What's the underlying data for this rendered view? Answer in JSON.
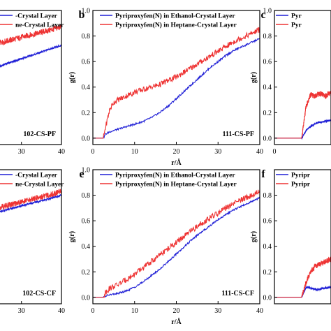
{
  "chart_data": [
    {
      "type": "line",
      "panel": "a",
      "letter": "",
      "corner_label": "102-CS-PF",
      "xlim": [
        18,
        40
      ],
      "ylim": [
        0,
        1.0
      ],
      "xticks": [
        30,
        40
      ],
      "yticks": [],
      "xlabel": "",
      "ylabel": "",
      "legend": [
        "-Crystal Layer",
        "ne-Crystal Layer"
      ],
      "series": [
        {
          "name": "-Crystal Layer",
          "color": "#1f1fd6",
          "x": [
            18,
            22,
            26,
            30,
            34,
            38,
            40
          ],
          "y": [
            0.5,
            0.55,
            0.6,
            0.64,
            0.68,
            0.72,
            0.74
          ]
        },
        {
          "name": "ne-Crystal Layer",
          "color": "#ee3333",
          "x": [
            18,
            22,
            26,
            30,
            34,
            38,
            40
          ],
          "y": [
            0.7,
            0.74,
            0.77,
            0.8,
            0.83,
            0.86,
            0.88
          ]
        }
      ]
    },
    {
      "type": "line",
      "panel": "b",
      "letter": "b",
      "corner_label": "111-CS-PF",
      "xlim": [
        0,
        40
      ],
      "ylim": [
        -0.05,
        1.0
      ],
      "xticks": [
        0,
        10,
        20,
        30,
        40
      ],
      "yticks": [
        0.0,
        0.2,
        0.4,
        0.6,
        0.8,
        1.0
      ],
      "xlabel": "r/Å",
      "ylabel": "g(r)",
      "legend": [
        "Pyriproxyfen(N) in Ethanol-Crystal Layer",
        "Pyriproxyfen(N) in Heptane-Crystal Layer"
      ],
      "series": [
        {
          "name": "Pyriproxyfen(N) in Ethanol-Crystal Layer",
          "color": "#1f1fd6",
          "x": [
            0,
            2.5,
            3,
            4,
            6,
            8,
            10,
            12,
            14,
            16,
            18,
            20,
            22,
            24,
            26,
            28,
            30,
            32,
            34,
            36,
            38,
            40
          ],
          "y": [
            0,
            0,
            0.03,
            0.05,
            0.07,
            0.09,
            0.11,
            0.13,
            0.16,
            0.2,
            0.25,
            0.31,
            0.37,
            0.43,
            0.49,
            0.55,
            0.6,
            0.65,
            0.69,
            0.72,
            0.75,
            0.78
          ]
        },
        {
          "name": "Pyriproxyfen(N) in Heptane-Crystal Layer",
          "color": "#ee3333",
          "x": [
            0,
            2.5,
            3,
            4,
            5,
            6,
            8,
            10,
            12,
            14,
            16,
            18,
            20,
            22,
            24,
            26,
            28,
            30,
            32,
            34,
            36,
            38,
            40
          ],
          "y": [
            0,
            0,
            0.08,
            0.22,
            0.28,
            0.3,
            0.33,
            0.36,
            0.38,
            0.4,
            0.42,
            0.45,
            0.48,
            0.52,
            0.56,
            0.6,
            0.64,
            0.68,
            0.72,
            0.76,
            0.79,
            0.82,
            0.85
          ]
        }
      ]
    },
    {
      "type": "line",
      "panel": "c",
      "letter": "c",
      "corner_label": "",
      "xlim": [
        0,
        5
      ],
      "ylim": [
        -0.05,
        1.0
      ],
      "xticks": [
        0
      ],
      "yticks": [
        0.0,
        0.2,
        0.4,
        0.6,
        0.8,
        1.0
      ],
      "xlabel": "",
      "ylabel": "g(r)",
      "legend": [
        "Pyr",
        "Pyr"
      ],
      "series": [
        {
          "name": "Pyr",
          "color": "#1f1fd6",
          "x": [
            0,
            2.4,
            2.8,
            3.3,
            3.8,
            4.3,
            5
          ],
          "y": [
            0,
            0,
            0.06,
            0.1,
            0.12,
            0.13,
            0.14
          ]
        },
        {
          "name": "Pyr",
          "color": "#ee3333",
          "x": [
            0,
            2.4,
            2.8,
            3.2,
            3.6,
            4.0,
            4.5,
            5
          ],
          "y": [
            0,
            0,
            0.25,
            0.34,
            0.33,
            0.35,
            0.33,
            0.36
          ]
        }
      ]
    },
    {
      "type": "line",
      "panel": "d",
      "letter": "",
      "corner_label": "102-CS-CF",
      "xlim": [
        18,
        40
      ],
      "ylim": [
        0,
        1.0
      ],
      "xticks": [
        30,
        40
      ],
      "yticks": [],
      "xlabel": "",
      "ylabel": "",
      "legend": [
        "-Crystal Layer",
        "ne-Crystal Layer"
      ],
      "series": [
        {
          "name": "-Crystal Layer",
          "color": "#1f1fd6",
          "x": [
            18,
            22,
            26,
            30,
            34,
            38,
            40
          ],
          "y": [
            0.62,
            0.66,
            0.7,
            0.73,
            0.76,
            0.79,
            0.81
          ]
        },
        {
          "name": "ne-Crystal Layer",
          "color": "#ee3333",
          "x": [
            18,
            22,
            26,
            30,
            34,
            38,
            40
          ],
          "y": [
            0.66,
            0.7,
            0.73,
            0.76,
            0.79,
            0.82,
            0.84
          ]
        }
      ]
    },
    {
      "type": "line",
      "panel": "e",
      "letter": "e",
      "corner_label": "111-CS-CF",
      "xlim": [
        0,
        40
      ],
      "ylim": [
        -0.05,
        1.0
      ],
      "xticks": [
        0,
        10,
        20,
        30,
        40
      ],
      "yticks": [
        0.0,
        0.2,
        0.4,
        0.6,
        0.8,
        1.0
      ],
      "xlabel": "r/Å",
      "ylabel": "g(r)",
      "legend": [
        "Pyriproxyfen(N) in Ethanol-Crystal Layer",
        "Pyriproxyfen(N) in Heptane-Crystal Layer"
      ],
      "series": [
        {
          "name": "Pyriproxyfen(N) in Ethanol-Crystal Layer",
          "color": "#1f1fd6",
          "x": [
            0,
            2.5,
            3,
            4,
            6,
            8,
            10,
            12,
            14,
            16,
            18,
            20,
            22,
            24,
            26,
            28,
            30,
            32,
            34,
            36,
            38,
            40
          ],
          "y": [
            0,
            0,
            0.01,
            0.02,
            0.03,
            0.05,
            0.08,
            0.12,
            0.17,
            0.22,
            0.28,
            0.34,
            0.4,
            0.46,
            0.51,
            0.56,
            0.61,
            0.65,
            0.69,
            0.72,
            0.75,
            0.78
          ]
        },
        {
          "name": "Pyriproxyfen(N) in Heptane-Crystal Layer",
          "color": "#ee3333",
          "x": [
            0,
            2.5,
            3,
            4,
            6,
            8,
            10,
            12,
            14,
            16,
            18,
            20,
            22,
            24,
            26,
            28,
            30,
            32,
            34,
            36,
            38,
            40
          ],
          "y": [
            0,
            0,
            0.04,
            0.07,
            0.1,
            0.14,
            0.18,
            0.23,
            0.28,
            0.33,
            0.38,
            0.43,
            0.48,
            0.53,
            0.58,
            0.62,
            0.66,
            0.7,
            0.74,
            0.77,
            0.8,
            0.83
          ]
        }
      ]
    },
    {
      "type": "line",
      "panel": "f",
      "letter": "f",
      "corner_label": "",
      "xlim": [
        0,
        5
      ],
      "ylim": [
        -0.05,
        1.0
      ],
      "xticks": [],
      "yticks": [
        0.0,
        0.2,
        0.4,
        0.6,
        0.8
      ],
      "xlabel": "",
      "ylabel": "g(r)",
      "legend": [
        "Pyripr",
        "Pyripr"
      ],
      "series": [
        {
          "name": "Pyripr",
          "color": "#1f1fd6",
          "x": [
            0,
            2.4,
            2.8,
            3.3,
            3.8,
            4.3,
            5
          ],
          "y": [
            0,
            0,
            0.08,
            0.07,
            0.06,
            0.07,
            0.08
          ]
        },
        {
          "name": "Pyripr",
          "color": "#ee3333",
          "x": [
            0,
            2.4,
            2.8,
            3.2,
            3.6,
            4.0,
            4.5,
            5
          ],
          "y": [
            0,
            0,
            0.12,
            0.2,
            0.24,
            0.26,
            0.28,
            0.3
          ]
        }
      ]
    }
  ]
}
